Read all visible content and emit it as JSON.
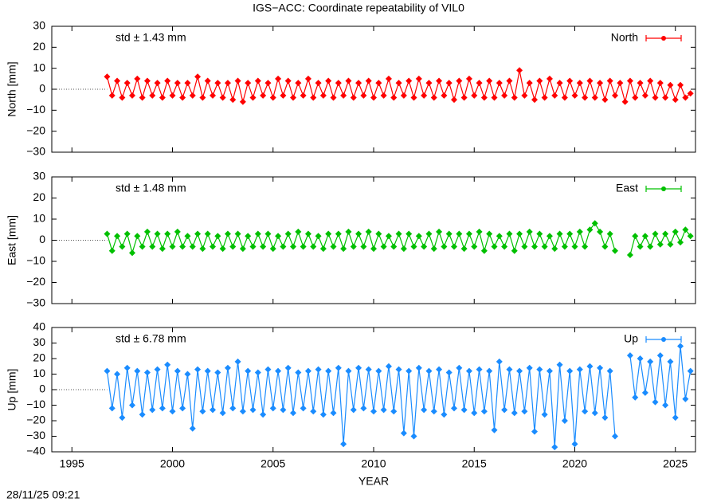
{
  "title": "IGS−ACC: Coordinate repeatability of VIL0",
  "footer": "28/11/25 09:21",
  "chart_data": [
    {
      "type": "line",
      "ylabel": "North [mm]",
      "annotation": "std ± 1.43 mm",
      "xlim": [
        1994,
        2026
      ],
      "xticks": [
        1995,
        2000,
        2005,
        2010,
        2015,
        2020,
        2025
      ],
      "ylim": [
        -30,
        30
      ],
      "yticks": [
        {
          "value": -30,
          "label": "−30"
        },
        {
          "value": -20,
          "label": "−20"
        },
        {
          "value": -10,
          "label": "−10"
        },
        0,
        10,
        20,
        30
      ],
      "legend": "top-right",
      "x": [
        1996.75,
        1997,
        1997.25,
        1997.5,
        1997.75,
        1998,
        1998.25,
        1998.5,
        1998.75,
        1999,
        1999.25,
        1999.5,
        1999.75,
        2000,
        2000.25,
        2000.5,
        2000.75,
        2001,
        2001.25,
        2001.5,
        2001.75,
        2002,
        2002.25,
        2002.5,
        2002.75,
        2003,
        2003.25,
        2003.5,
        2003.75,
        2004,
        2004.25,
        2004.5,
        2004.75,
        2005,
        2005.25,
        2005.5,
        2005.75,
        2006,
        2006.25,
        2006.5,
        2006.75,
        2007,
        2007.25,
        2007.5,
        2007.75,
        2008,
        2008.25,
        2008.5,
        2008.75,
        2009,
        2009.25,
        2009.5,
        2009.75,
        2010,
        2010.25,
        2010.5,
        2010.75,
        2011,
        2011.25,
        2011.5,
        2011.75,
        2012,
        2012.25,
        2012.5,
        2012.75,
        2013,
        2013.25,
        2013.5,
        2013.75,
        2014,
        2014.25,
        2014.5,
        2014.75,
        2015,
        2015.25,
        2015.5,
        2015.75,
        2016,
        2016.25,
        2016.5,
        2016.75,
        2017,
        2017.25,
        2017.5,
        2017.75,
        2018,
        2018.25,
        2018.5,
        2018.75,
        2019,
        2019.25,
        2019.5,
        2019.75,
        2020,
        2020.25,
        2020.5,
        2020.75,
        2021,
        2021.25,
        2021.5,
        2021.75,
        2022,
        2022.25,
        2022.5,
        2022.75,
        2023,
        2023.25,
        2023.5,
        2023.75,
        2024,
        2024.25,
        2024.5,
        2024.75,
        2025,
        2025.25,
        2025.5,
        2025.75
      ],
      "series": [
        {
          "name": "North",
          "color": "#ff0000",
          "values": [
            6,
            -3,
            4,
            -4,
            3,
            -3,
            5,
            -4,
            4,
            -3,
            3,
            -4,
            4,
            -3,
            3,
            -4,
            3,
            -3,
            6,
            -4,
            4,
            -3,
            3,
            -4,
            3,
            -5,
            4,
            -6,
            3,
            -4,
            4,
            -3,
            3,
            -4,
            5,
            -3,
            4,
            -4,
            3,
            -3,
            5,
            -4,
            3,
            -3,
            4,
            -4,
            3,
            -3,
            4,
            -4,
            3,
            -3,
            4,
            -4,
            3,
            -3,
            5,
            -4,
            3,
            -3,
            4,
            -4,
            5,
            -3,
            3,
            -4,
            4,
            -3,
            3,
            -5,
            4,
            -4,
            5,
            -3,
            3,
            -4,
            4,
            -4,
            3,
            -3,
            4,
            -4,
            9,
            -3,
            3,
            -5,
            4,
            -4,
            5,
            -3,
            3,
            -4,
            4,
            -3,
            3,
            -4,
            4,
            -4,
            3,
            -5,
            4,
            -3,
            3,
            -6,
            4,
            -4,
            3,
            -3,
            4,
            -4,
            3,
            -4,
            2,
            -5,
            2,
            -4,
            -2
          ]
        }
      ]
    },
    {
      "type": "line",
      "ylabel": "East [mm]",
      "annotation": "std ± 1.48 mm",
      "xlim": [
        1994,
        2026
      ],
      "xticks": [
        1995,
        2000,
        2005,
        2010,
        2015,
        2020,
        2025
      ],
      "ylim": [
        -30,
        30
      ],
      "yticks": [
        {
          "value": -30,
          "label": "−30"
        },
        {
          "value": -20,
          "label": "−20"
        },
        {
          "value": -10,
          "label": "−10"
        },
        0,
        10,
        20,
        30
      ],
      "legend": "top-right",
      "x": [
        1996.75,
        1997,
        1997.25,
        1997.5,
        1997.75,
        1998,
        1998.25,
        1998.5,
        1998.75,
        1999,
        1999.25,
        1999.5,
        1999.75,
        2000,
        2000.25,
        2000.5,
        2000.75,
        2001,
        2001.25,
        2001.5,
        2001.75,
        2002,
        2002.25,
        2002.5,
        2002.75,
        2003,
        2003.25,
        2003.5,
        2003.75,
        2004,
        2004.25,
        2004.5,
        2004.75,
        2005,
        2005.25,
        2005.5,
        2005.75,
        2006,
        2006.25,
        2006.5,
        2006.75,
        2007,
        2007.25,
        2007.5,
        2007.75,
        2008,
        2008.25,
        2008.5,
        2008.75,
        2009,
        2009.25,
        2009.5,
        2009.75,
        2010,
        2010.25,
        2010.5,
        2010.75,
        2011,
        2011.25,
        2011.5,
        2011.75,
        2012,
        2012.25,
        2012.5,
        2012.75,
        2013,
        2013.25,
        2013.5,
        2013.75,
        2014,
        2014.25,
        2014.5,
        2014.75,
        2015,
        2015.25,
        2015.5,
        2015.75,
        2016,
        2016.25,
        2016.5,
        2016.75,
        2017,
        2017.25,
        2017.5,
        2017.75,
        2018,
        2018.25,
        2018.5,
        2018.75,
        2019,
        2019.25,
        2019.5,
        2019.75,
        2020,
        2020.25,
        2020.5,
        2020.75,
        2021,
        2021.25,
        2021.5,
        2021.75,
        2022,
        2022.25,
        2022.5,
        2022.75,
        2023,
        2023.25,
        2023.5,
        2023.75,
        2024,
        2024.25,
        2024.5,
        2024.75,
        2025,
        2025.25,
        2025.5,
        2025.75
      ],
      "series": [
        {
          "name": "East",
          "color": "#00c000",
          "values": [
            3,
            -5,
            2,
            -3,
            3,
            -6,
            2,
            -3,
            4,
            -3,
            3,
            -4,
            3,
            -3,
            4,
            -3,
            2,
            -3,
            3,
            -4,
            3,
            -3,
            2,
            -4,
            3,
            -3,
            3,
            -4,
            2,
            -3,
            3,
            -3,
            3,
            -4,
            2,
            -3,
            3,
            -3,
            4,
            -3,
            3,
            -3,
            2,
            -4,
            3,
            -3,
            3,
            -4,
            4,
            -3,
            3,
            -3,
            4,
            -4,
            3,
            -3,
            2,
            -3,
            3,
            -4,
            3,
            -3,
            2,
            -3,
            3,
            -4,
            4,
            -3,
            3,
            -3,
            3,
            -4,
            3,
            -3,
            4,
            -5,
            3,
            -3,
            2,
            -3,
            3,
            -5,
            3,
            -3,
            4,
            -3,
            3,
            -3,
            2,
            -4,
            3,
            -3,
            3,
            -3,
            4,
            -3,
            5,
            8,
            4,
            -3,
            3,
            -5,
            null,
            null,
            -7,
            2,
            -3,
            2,
            -3,
            3,
            -2,
            3,
            -2,
            4,
            -1,
            5,
            2
          ]
        }
      ]
    },
    {
      "type": "line",
      "ylabel": "Up [mm]",
      "xlabel": "YEAR",
      "annotation": "std ± 6.78 mm",
      "xlim": [
        1994,
        2026
      ],
      "xticks": [
        1995,
        2000,
        2005,
        2010,
        2015,
        2020,
        2025
      ],
      "ylim": [
        -40,
        40
      ],
      "yticks": [
        {
          "value": -40,
          "label": "−40"
        },
        {
          "value": -30,
          "label": "−30"
        },
        {
          "value": -20,
          "label": "−20"
        },
        {
          "value": -10,
          "label": "−10"
        },
        0,
        10,
        20,
        30,
        40
      ],
      "legend": "top-right",
      "x": [
        1996.75,
        1997,
        1997.25,
        1997.5,
        1997.75,
        1998,
        1998.25,
        1998.5,
        1998.75,
        1999,
        1999.25,
        1999.5,
        1999.75,
        2000,
        2000.25,
        2000.5,
        2000.75,
        2001,
        2001.25,
        2001.5,
        2001.75,
        2002,
        2002.25,
        2002.5,
        2002.75,
        2003,
        2003.25,
        2003.5,
        2003.75,
        2004,
        2004.25,
        2004.5,
        2004.75,
        2005,
        2005.25,
        2005.5,
        2005.75,
        2006,
        2006.25,
        2006.5,
        2006.75,
        2007,
        2007.25,
        2007.5,
        2007.75,
        2008,
        2008.25,
        2008.5,
        2008.75,
        2009,
        2009.25,
        2009.5,
        2009.75,
        2010,
        2010.25,
        2010.5,
        2010.75,
        2011,
        2011.25,
        2011.5,
        2011.75,
        2012,
        2012.25,
        2012.5,
        2012.75,
        2013,
        2013.25,
        2013.5,
        2013.75,
        2014,
        2014.25,
        2014.5,
        2014.75,
        2015,
        2015.25,
        2015.5,
        2015.75,
        2016,
        2016.25,
        2016.5,
        2016.75,
        2017,
        2017.25,
        2017.5,
        2017.75,
        2018,
        2018.25,
        2018.5,
        2018.75,
        2019,
        2019.25,
        2019.5,
        2019.75,
        2020,
        2020.25,
        2020.5,
        2020.75,
        2021,
        2021.25,
        2021.5,
        2021.75,
        2022,
        2022.25,
        2022.5,
        2022.75,
        2023,
        2023.25,
        2023.5,
        2023.75,
        2024,
        2024.25,
        2024.5,
        2024.75,
        2025,
        2025.25,
        2025.5,
        2025.75
      ],
      "series": [
        {
          "name": "Up",
          "color": "#1a8cff",
          "values": [
            12,
            -12,
            10,
            -18,
            14,
            -10,
            12,
            -16,
            11,
            -13,
            13,
            -12,
            16,
            -14,
            12,
            -12,
            10,
            -25,
            13,
            -14,
            12,
            -13,
            11,
            -15,
            14,
            -12,
            18,
            -14,
            12,
            -13,
            11,
            -16,
            13,
            -12,
            12,
            -13,
            14,
            -15,
            11,
            -12,
            12,
            -14,
            13,
            -16,
            12,
            -15,
            14,
            -35,
            12,
            -13,
            14,
            -12,
            13,
            -14,
            12,
            -13,
            15,
            -14,
            13,
            -28,
            12,
            -30,
            14,
            -13,
            12,
            -14,
            13,
            -16,
            11,
            -12,
            14,
            -13,
            12,
            -15,
            13,
            -14,
            12,
            -26,
            18,
            -13,
            13,
            -15,
            12,
            -14,
            14,
            -27,
            13,
            -16,
            12,
            -37,
            16,
            -20,
            12,
            -35,
            13,
            -14,
            15,
            -15,
            14,
            -18,
            12,
            -30,
            null,
            null,
            22,
            -5,
            20,
            -2,
            18,
            -8,
            22,
            -10,
            18,
            -18,
            28,
            -6,
            12
          ]
        }
      ]
    }
  ]
}
